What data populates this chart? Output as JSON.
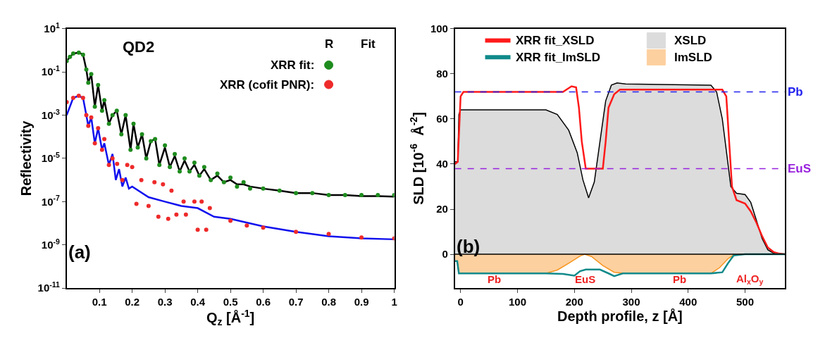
{
  "chart_data": [
    {
      "type": "scatter",
      "title": "QD2",
      "xlabel": "Q$_{z}$ [Å$^{-1}$]",
      "ylabel": "Reflectivity",
      "log": "y",
      "xlim": [
        0,
        1
      ],
      "ylim": [
        1e-11,
        10
      ],
      "xticks": [
        0.1,
        0.2,
        0.3,
        0.4,
        0.5,
        0.6,
        0.7,
        0.8,
        0.9,
        1.0
      ],
      "yticks": [
        {
          "value": 10,
          "label": "10$^{1}$"
        },
        {
          "value": 0.1,
          "label": "10$^{-1}$"
        },
        {
          "value": 0.001,
          "label": "10$^{-3}$"
        },
        {
          "value": 1e-05,
          "label": "10$^{-5}$"
        },
        {
          "value": 1e-07,
          "label": "10$^{-7}$"
        },
        {
          "value": 1e-09,
          "label": "10$^{-9}$"
        },
        {
          "value": 1e-11,
          "label": "10$^{-11}$"
        }
      ],
      "legend": "top right",
      "annotations": [
        "R",
        "Fit",
        "(a)"
      ],
      "series": [
        {
          "name": "XRR fit:",
          "color": "#1e8c1e",
          "marker": "circle",
          "x": [
            0.0,
            0.01,
            0.02,
            0.037,
            0.05,
            0.06,
            0.066,
            0.075,
            0.086,
            0.096,
            0.108,
            0.115,
            0.129,
            0.14,
            0.153,
            0.167,
            0.18,
            0.195,
            0.204,
            0.217,
            0.23,
            0.243,
            0.257,
            0.27,
            0.283,
            0.3,
            0.315,
            0.33,
            0.345,
            0.36,
            0.375,
            0.39,
            0.405,
            0.42,
            0.44,
            0.46,
            0.48,
            0.5,
            0.52,
            0.54,
            0.56,
            0.6,
            0.65,
            0.7,
            0.75,
            0.8,
            0.85,
            0.9,
            0.95,
            1.0
          ],
          "values": [
            0.32,
            0.5,
            0.71,
            0.79,
            0.63,
            0.13,
            0.032,
            0.079,
            0.0025,
            0.025,
            0.0016,
            0.005,
            0.0004,
            0.001,
            0.0016,
            0.00013,
            0.001,
            2.5e-05,
            0.0004,
            3.2e-05,
            0.00013,
            1e-05,
            6.3e-05,
            7.9e-05,
            5e-06,
            4e-05,
            4e-06,
            1.6e-05,
            2.5e-06,
            1e-05,
            2.5e-06,
            6.3e-06,
            1.6e-06,
            4e-06,
            1e-06,
            2e-06,
            7.9e-07,
            1.3e-06,
            5e-07,
            7.9e-07,
            4e-07,
            4e-07,
            3.2e-07,
            2.5e-07,
            2.5e-07,
            2e-07,
            2e-07,
            2e-07,
            2e-07,
            2e-07
          ]
        },
        {
          "color": "#000000",
          "type": "line",
          "x": [
            0.0,
            0.01,
            0.02,
            0.037,
            0.05,
            0.06,
            0.066,
            0.075,
            0.086,
            0.096,
            0.108,
            0.115,
            0.129,
            0.14,
            0.153,
            0.167,
            0.18,
            0.195,
            0.204,
            0.217,
            0.23,
            0.243,
            0.257,
            0.27,
            0.283,
            0.3,
            0.315,
            0.33,
            0.345,
            0.36,
            0.375,
            0.39,
            0.405,
            0.42,
            0.44,
            0.46,
            0.48,
            0.5,
            0.52,
            0.54,
            0.56,
            0.6,
            0.65,
            0.7,
            0.75,
            0.8,
            0.85,
            0.9,
            0.95,
            1.0
          ],
          "values": [
            0.32,
            0.5,
            0.71,
            0.79,
            0.63,
            0.13,
            0.032,
            0.079,
            0.0025,
            0.025,
            0.0016,
            0.005,
            0.0004,
            0.001,
            0.0016,
            0.00013,
            0.001,
            2.5e-05,
            0.0004,
            3.2e-05,
            0.00013,
            1e-05,
            6.3e-05,
            7.9e-05,
            5e-06,
            3.2e-05,
            4e-06,
            1.3e-05,
            2.5e-06,
            7.9e-06,
            2.5e-06,
            5e-06,
            1.6e-06,
            3.2e-06,
            1e-06,
            1.6e-06,
            7.9e-07,
            1e-06,
            6.3e-07,
            6.3e-07,
            5e-07,
            4e-07,
            3.2e-07,
            2.5e-07,
            2.5e-07,
            2e-07,
            2e-07,
            1.8e-07,
            1.8e-07,
            1.7e-07
          ]
        },
        {
          "name": "XRR (cofit PNR):",
          "color": "#ee2a2a",
          "marker": "circle",
          "x": [
            0.0,
            0.02,
            0.037,
            0.05,
            0.06,
            0.066,
            0.075,
            0.086,
            0.096,
            0.108,
            0.115,
            0.129,
            0.14,
            0.154,
            0.17,
            0.185,
            0.2,
            0.213,
            0.228,
            0.25,
            0.268,
            0.28,
            0.294,
            0.31,
            0.32,
            0.335,
            0.357,
            0.364,
            0.39,
            0.4,
            0.412,
            0.426,
            0.437,
            0.5,
            0.55,
            0.6,
            0.7,
            0.8,
            0.9,
            1.0
          ],
          "values": [
            0.004,
            0.0063,
            0.0079,
            0.0063,
            0.001,
            0.00032,
            0.00079,
            5e-05,
            0.00025,
            2.5e-05,
            7.9e-05,
            5e-06,
            1e-05,
            5.6e-06,
            1e-06,
            5e-06,
            4e-06,
            7.9e-08,
            1e-06,
            6.3e-08,
            7.9e-07,
            2e-08,
            6.3e-07,
            1.6e-08,
            3.2e-07,
            2.5e-08,
            1e-07,
            2.5e-08,
            1e-07,
            5e-09,
            1e-07,
            5e-09,
            5e-08,
            1.3e-08,
            7.9e-09,
            6.3e-09,
            4e-09,
            3.2e-09,
            2.2e-09,
            2e-09
          ]
        },
        {
          "color": "#1010ee",
          "type": "line",
          "x": [
            0.0,
            0.02,
            0.037,
            0.05,
            0.06,
            0.066,
            0.075,
            0.086,
            0.096,
            0.108,
            0.115,
            0.129,
            0.14,
            0.15,
            0.16,
            0.17,
            0.18,
            0.19,
            0.2,
            0.25,
            0.3,
            0.35,
            0.4,
            0.45,
            0.5,
            0.6,
            0.7,
            0.8,
            0.9,
            1.0
          ],
          "values": [
            0.001,
            0.0063,
            0.0079,
            0.0063,
            0.001,
            0.00032,
            0.00079,
            5e-05,
            0.00025,
            2.5e-05,
            5e-05,
            5e-06,
            1.6e-05,
            1e-06,
            3.2e-06,
            5e-07,
            1.3e-06,
            4e-07,
            5e-07,
            1.6e-07,
            1e-07,
            6.3e-08,
            5e-08,
            2e-08,
            1.6e-08,
            7.1e-09,
            4e-09,
            2.5e-09,
            2e-09,
            1.8e-09
          ]
        }
      ]
    },
    {
      "type": "area",
      "xlabel": "Depth profile, z [Å]",
      "ylabel": "SLD [10$^{-6}$  Å$^{-2}$]",
      "xlim": [
        -10,
        570
      ],
      "ylim": [
        -15,
        100
      ],
      "xticks": [
        0,
        100,
        200,
        300,
        400,
        500
      ],
      "yticks": [
        0,
        20,
        40,
        60,
        80,
        100
      ],
      "legend": "top",
      "ref_lines": [
        {
          "axis": "y",
          "value": 72,
          "label": "Pb",
          "color": "#2222ee",
          "line_style": "dashed"
        },
        {
          "axis": "y",
          "value": 38,
          "label": "EuS",
          "color": "#9922dd",
          "line_style": "dashed"
        },
        {
          "axis": "y",
          "value": 0,
          "color": "#000000",
          "line_style": "solid"
        }
      ],
      "annotations": [
        "(b)",
        "Pb",
        "EuS",
        "Pb",
        "Al$_{x}$O$_{y}$"
      ],
      "series": [
        {
          "name": "XRR fit_XSLD",
          "type": "line",
          "color": "#ff1a1a",
          "x": [
            -10,
            -5,
            0,
            5,
            180,
            195,
            203,
            208,
            213,
            220,
            250,
            255,
            260,
            270,
            280,
            460,
            467,
            472,
            477,
            485,
            500,
            510,
            520,
            530,
            540,
            550,
            560,
            570
          ],
          "values": [
            40,
            41,
            70,
            72,
            72,
            74.5,
            74,
            65,
            50,
            38,
            38,
            50,
            65,
            71,
            73,
            73,
            70,
            50,
            30,
            24,
            22.5,
            19,
            14,
            8,
            3,
            1,
            0.3,
            0
          ]
        },
        {
          "name": "XSLD",
          "color": "#dcdcdc",
          "x": [
            -10,
            -5,
            -3,
            0,
            150,
            170,
            190,
            205,
            215,
            225,
            235,
            245,
            255,
            265,
            275,
            290,
            440,
            450,
            460,
            470,
            475,
            485,
            500,
            510,
            520,
            530,
            540,
            550,
            560,
            570
          ],
          "values": [
            41,
            41,
            62,
            64,
            64,
            62,
            55,
            45,
            33,
            25,
            32,
            50,
            68,
            75,
            76,
            75.5,
            75,
            72,
            60,
            40,
            30,
            27,
            26.5,
            23,
            15,
            7,
            2,
            0.5,
            0,
            0
          ]
        },
        {
          "name": "XRR fit_ImSLD",
          "type": "line",
          "color": "#108a8a",
          "x": [
            -10,
            -6,
            -3,
            150,
            180,
            200,
            210,
            220,
            245,
            260,
            270,
            285,
            440,
            460,
            470,
            480,
            500,
            570
          ],
          "values": [
            -3,
            -3,
            -8.5,
            -8.5,
            -8.7,
            -9.5,
            -7.5,
            -6.8,
            -6.8,
            -8.5,
            -9.7,
            -8.5,
            -8.5,
            -8,
            -4,
            -0.5,
            0,
            0
          ]
        },
        {
          "name": "ImSLD",
          "color": "#fdd09f",
          "x": [
            -10,
            -6,
            -3,
            150,
            170,
            190,
            210,
            218,
            230,
            250,
            270,
            290,
            440,
            455,
            470,
            480,
            500,
            570
          ],
          "values": [
            -3,
            -3,
            -8.5,
            -8.5,
            -7,
            -4,
            -0.8,
            0,
            -1,
            -5,
            -8,
            -8.5,
            -8.5,
            -6,
            -2,
            -0.3,
            0,
            0
          ]
        }
      ]
    }
  ]
}
